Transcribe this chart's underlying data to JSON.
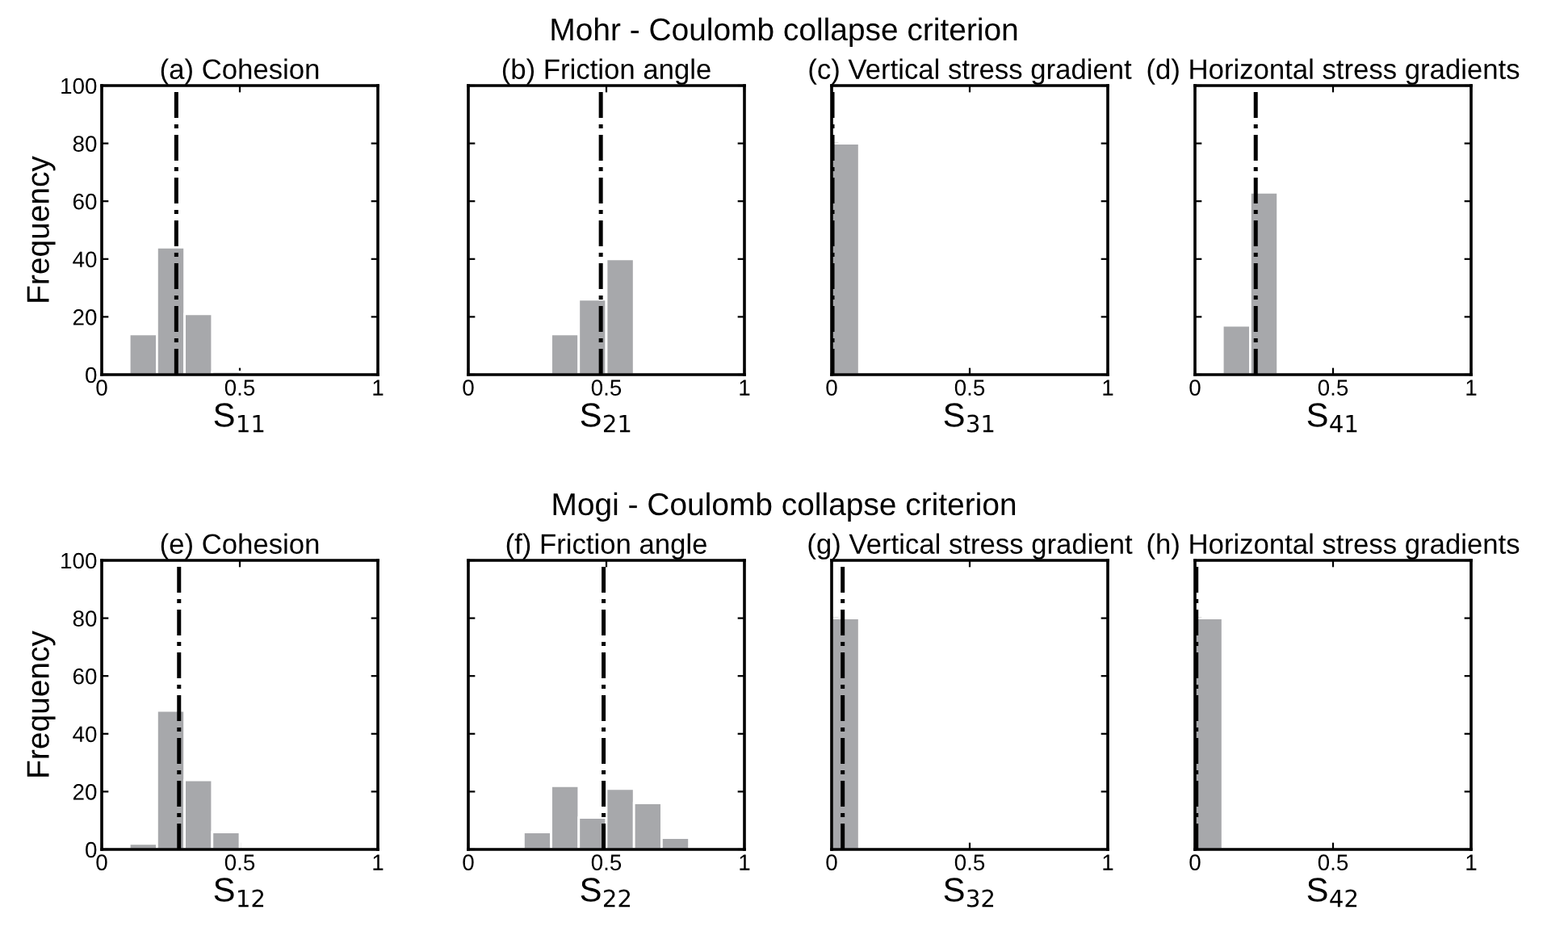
{
  "chart_data": [
    {
      "type": "histogram",
      "title": "(a) Cohesion",
      "xlabel": "S$_{11}$",
      "ylabel": "Frequency",
      "bins": [
        0,
        0.1,
        0.2,
        0.3,
        0.4,
        0.5,
        0.6,
        0.7,
        0.8,
        0.9,
        1
      ],
      "values": [
        0,
        14,
        44,
        21,
        1,
        0,
        0,
        0,
        0,
        0
      ],
      "color": "#a7a8ab",
      "xlim": [
        0,
        1
      ],
      "xticks": [
        0,
        0.5,
        1
      ],
      "ylim": [
        0,
        100
      ],
      "yticks": [
        0,
        20,
        40,
        60,
        80,
        100
      ],
      "ref_lines": [
        {
          "axis": "x",
          "value": 0.27,
          "color": "#000000",
          "line_style": "dashdot"
        }
      ],
      "grid": false
    },
    {
      "type": "histogram",
      "subtitle": "Mohr - Coulomb collapse criterion",
      "title": "(b) Friction angle",
      "xlabel": "S$_{21}$",
      "bins": [
        0,
        0.1,
        0.2,
        0.3,
        0.4,
        0.5,
        0.6,
        0.7,
        0.8,
        0.9,
        1
      ],
      "values": [
        0,
        0,
        0,
        14,
        26,
        40,
        0,
        0,
        0,
        0
      ],
      "color": "#a7a8ab",
      "xlim": [
        0,
        1
      ],
      "xticks": [
        0,
        0.5,
        1
      ],
      "ylim": [
        0,
        100
      ],
      "yticks": [
        0,
        20,
        40,
        60,
        80,
        100
      ],
      "tick_labels": "x",
      "ref_lines": [
        {
          "axis": "x",
          "value": 0.48,
          "color": "#000000",
          "line_style": "dashdot"
        }
      ],
      "grid": false
    },
    {
      "type": "histogram",
      "title": "(c) Vertical stress gradient",
      "xlabel": "S$_{31}$",
      "bins": [
        0,
        0.1,
        0.2,
        0.3,
        0.4,
        0.5,
        0.6,
        0.7,
        0.8,
        0.9,
        1
      ],
      "values": [
        80,
        0,
        0,
        0,
        0,
        0,
        0,
        0,
        0,
        0
      ],
      "color": "#a7a8ab",
      "xlim": [
        0,
        1
      ],
      "xticks": [
        0,
        0.5,
        1
      ],
      "ylim": [
        0,
        100
      ],
      "yticks": [
        0,
        20,
        40,
        60,
        80,
        100
      ],
      "tick_labels": "x",
      "ref_lines": [
        {
          "axis": "x",
          "value": 0.003,
          "color": "#000000",
          "line_style": "dashdot"
        }
      ],
      "grid": false
    },
    {
      "type": "histogram",
      "title": "(d) Horizontal stress gradients",
      "xlabel": "S$_{41}$",
      "bins": [
        0,
        0.1,
        0.2,
        0.3,
        0.4,
        0.5,
        0.6,
        0.7,
        0.8,
        0.9,
        1
      ],
      "values": [
        0,
        17,
        63,
        0,
        0,
        0,
        0,
        0,
        0,
        0
      ],
      "color": "#a7a8ab",
      "xlim": [
        0,
        1
      ],
      "xticks": [
        0,
        0.5,
        1
      ],
      "ylim": [
        0,
        100
      ],
      "yticks": [
        0,
        20,
        40,
        60,
        80,
        100
      ],
      "tick_labels": "x",
      "ref_lines": [
        {
          "axis": "x",
          "value": 0.22,
          "color": "#000000",
          "line_style": "dashdot"
        }
      ],
      "grid": false
    },
    {
      "type": "histogram",
      "title": "(e) Cohesion",
      "xlabel": "S$_{12}$",
      "ylabel": "Frequency",
      "bins": [
        0,
        0.1,
        0.2,
        0.3,
        0.4,
        0.5,
        0.6,
        0.7,
        0.8,
        0.9,
        1
      ],
      "values": [
        0,
        2,
        48,
        24,
        6,
        0,
        0,
        0,
        0,
        0
      ],
      "color": "#a7a8ab",
      "xlim": [
        0,
        1
      ],
      "xticks": [
        0,
        0.5,
        1
      ],
      "ylim": [
        0,
        100
      ],
      "yticks": [
        0,
        20,
        40,
        60,
        80,
        100
      ],
      "ref_lines": [
        {
          "axis": "x",
          "value": 0.28,
          "color": "#000000",
          "line_style": "dashdot"
        }
      ],
      "grid": false
    },
    {
      "type": "histogram",
      "subtitle": "Mogi - Coulomb collapse criterion",
      "title": "(f) Friction angle",
      "xlabel": "S$_{22}$",
      "bins": [
        0,
        0.1,
        0.2,
        0.3,
        0.4,
        0.5,
        0.6,
        0.7,
        0.8,
        0.9,
        1
      ],
      "values": [
        0,
        0,
        6,
        22,
        11,
        21,
        16,
        4,
        0,
        0
      ],
      "color": "#a7a8ab",
      "xlim": [
        0,
        1
      ],
      "xticks": [
        0,
        0.5,
        1
      ],
      "ylim": [
        0,
        100
      ],
      "yticks": [
        0,
        20,
        40,
        60,
        80,
        100
      ],
      "tick_labels": "x",
      "ref_lines": [
        {
          "axis": "x",
          "value": 0.49,
          "color": "#000000",
          "line_style": "dashdot"
        }
      ],
      "grid": false
    },
    {
      "type": "histogram",
      "title": "(g) Vertical stress gradient",
      "xlabel": "S$_{32}$",
      "bins": [
        0,
        0.1,
        0.2,
        0.3,
        0.4,
        0.5,
        0.6,
        0.7,
        0.8,
        0.9,
        1
      ],
      "values": [
        80,
        0,
        0,
        0,
        0,
        0,
        0,
        0,
        0,
        0
      ],
      "color": "#a7a8ab",
      "xlim": [
        0,
        1
      ],
      "xticks": [
        0,
        0.5,
        1
      ],
      "ylim": [
        0,
        100
      ],
      "yticks": [
        0,
        20,
        40,
        60,
        80,
        100
      ],
      "tick_labels": "x",
      "ref_lines": [
        {
          "axis": "x",
          "value": 0.04,
          "color": "#000000",
          "line_style": "dashdot"
        }
      ],
      "grid": false
    },
    {
      "type": "histogram",
      "title": "(h) Horizontal stress gradients",
      "xlabel": "S$_{42}$",
      "bins": [
        0,
        0.1,
        0.2,
        0.3,
        0.4,
        0.5,
        0.6,
        0.7,
        0.8,
        0.9,
        1
      ],
      "values": [
        80,
        0,
        0,
        0,
        0,
        0,
        0,
        0,
        0,
        0
      ],
      "color": "#a7a8ab",
      "xlim": [
        0,
        1
      ],
      "xticks": [
        0,
        0.5,
        1
      ],
      "ylim": [
        0,
        100
      ],
      "yticks": [
        0,
        20,
        40,
        60,
        80,
        100
      ],
      "tick_labels": "x",
      "ref_lines": [
        {
          "axis": "x",
          "value": 0.005,
          "color": "#000000",
          "line_style": "dashdot"
        }
      ],
      "grid": false
    }
  ]
}
